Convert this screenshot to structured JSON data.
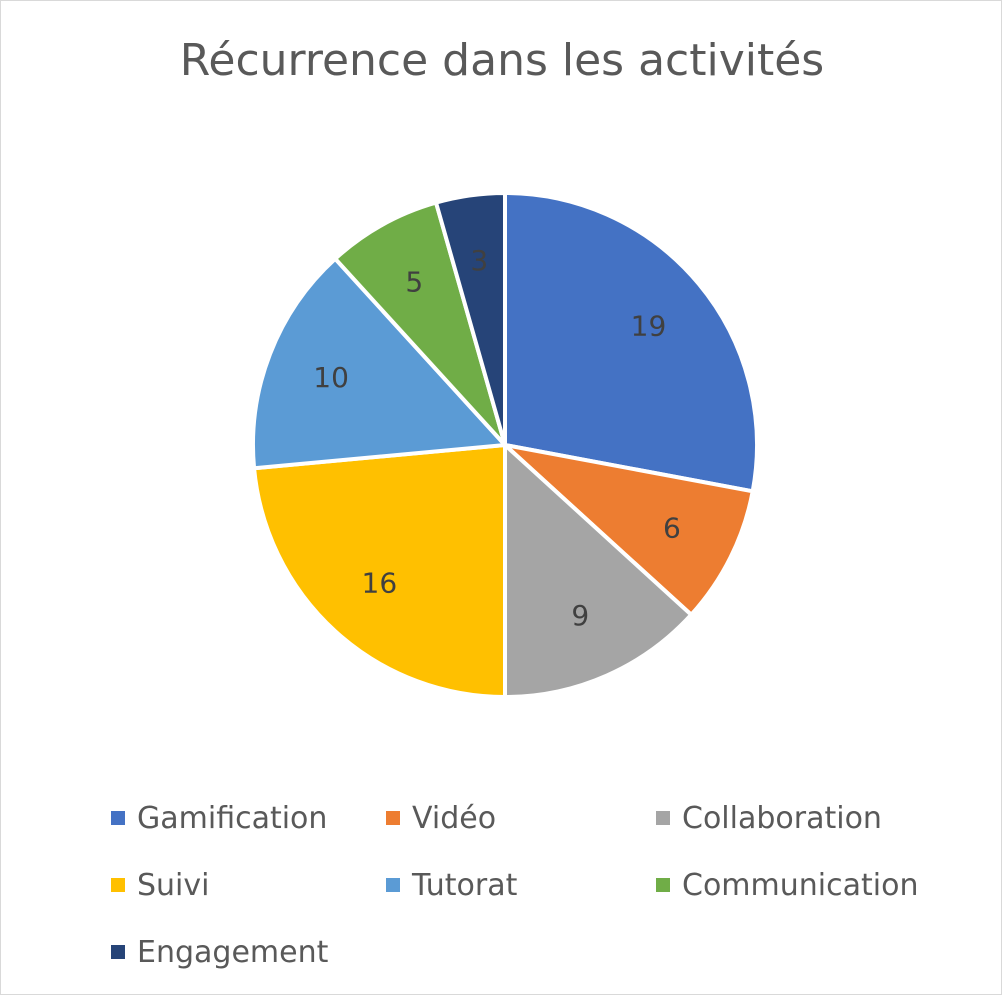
{
  "chart_data": {
    "type": "pie",
    "title": "Récurrence dans les activités",
    "categories": [
      "Gamification",
      "Vidéo",
      "Collaboration",
      "Suivi",
      "Tutorat",
      "Communication",
      "Engagement"
    ],
    "values": [
      19,
      6,
      9,
      16,
      10,
      5,
      3
    ],
    "colors": [
      "#4472C4",
      "#ED7D31",
      "#A5A5A5",
      "#FFC000",
      "#5B9BD5",
      "#70AD47",
      "#264478"
    ],
    "data_labels": [
      "19",
      "6",
      "9",
      "16",
      "10",
      "5",
      "3"
    ],
    "start_angle_deg": 0,
    "direction": "clockwise",
    "legend_position": "bottom"
  }
}
